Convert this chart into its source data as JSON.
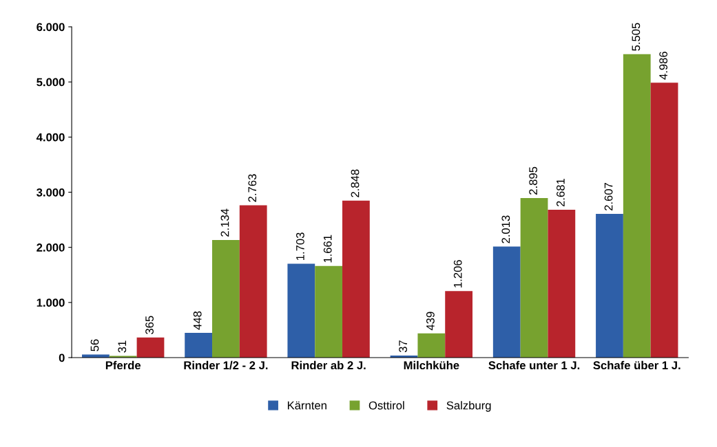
{
  "chart_data": {
    "type": "bar",
    "categories": [
      "Pferde",
      "Rinder 1/2 - 2 J.",
      "Rinder ab 2 J.",
      "Milchkühe",
      "Schafe unter 1 J.",
      "Schafe über 1 J."
    ],
    "series": [
      {
        "name": "Kärnten",
        "color": "#2e5fa8",
        "values": [
          56,
          448,
          1703,
          37,
          2013,
          2607
        ],
        "value_labels": [
          "56",
          "448",
          "1.703",
          "37",
          "2.013",
          "2.607"
        ]
      },
      {
        "name": "Osttirol",
        "color": "#77a22f",
        "values": [
          31,
          2134,
          1661,
          439,
          2895,
          5505
        ],
        "value_labels": [
          "31",
          "2.134",
          "1.661",
          "439",
          "2.895",
          "5.505"
        ]
      },
      {
        "name": "Salzburg",
        "color": "#b8242c",
        "values": [
          365,
          2763,
          2848,
          1206,
          2681,
          4986
        ],
        "value_labels": [
          "365",
          "2.763",
          "2.848",
          "1.206",
          "2.681",
          "4.986"
        ]
      }
    ],
    "ylim": [
      0,
      6000
    ],
    "yticks": [
      0,
      {
        "value": 1000,
        "label": "1.000"
      },
      {
        "value": 2000,
        "label": "2.000"
      },
      {
        "value": 3000,
        "label": "3.000"
      },
      {
        "value": 4000,
        "label": "4.000"
      },
      {
        "value": 5000,
        "label": "5.000"
      },
      {
        "value": 6000,
        "label": "6.000"
      }
    ],
    "grid": false,
    "legend": "bottom"
  }
}
